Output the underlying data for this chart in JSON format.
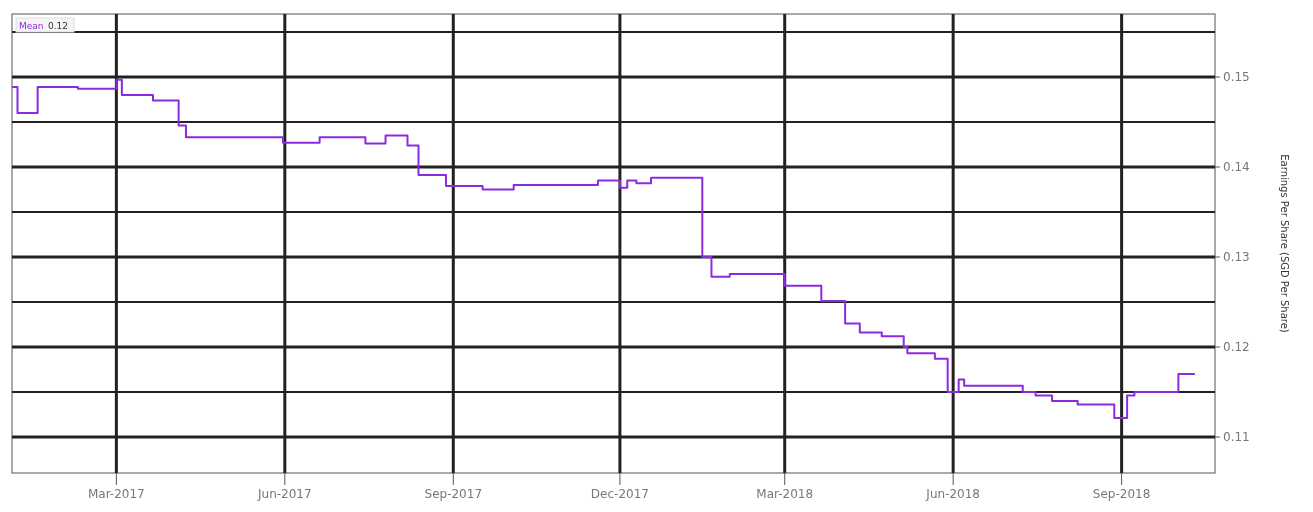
{
  "chart_data": {
    "type": "step",
    "y2label": "Earnings Per Share (SGD Per Share)",
    "legend": "top left",
    "grid": true,
    "annotations": [
      "0.12"
    ],
    "xlim": [
      "2017-01-03",
      "2018-10-22"
    ],
    "xticks": [
      {
        "value": "2017-03-01",
        "label": "Mar-2017"
      },
      {
        "value": "2017-06-01",
        "label": "Jun-2017"
      },
      {
        "value": "2017-09-01",
        "label": "Sep-2017"
      },
      {
        "value": "2017-12-01",
        "label": "Dec-2017"
      },
      {
        "value": "2018-03-01",
        "label": "Mar-2018"
      },
      {
        "value": "2018-06-01",
        "label": "Jun-2018"
      },
      {
        "value": "2018-09-01",
        "label": "Sep-2018"
      }
    ],
    "y2lim": [
      0.106,
      0.157
    ],
    "y2ticks": [
      0.11,
      {
        "value": 0.115,
        "label": null
      },
      0.12,
      {
        "value": 0.125,
        "label": null
      },
      0.13,
      {
        "value": 0.135,
        "label": null
      },
      0.14,
      {
        "value": 0.145,
        "label": null
      },
      0.15,
      {
        "value": 0.155,
        "label": null
      }
    ],
    "series": [
      {
        "name": "Mean",
        "color": "#8a2be2",
        "axis": "y2",
        "x": [
          "2017-01-03",
          "2017-01-06",
          "2017-01-17",
          "2017-02-08",
          "2017-03-01",
          "2017-03-04",
          "2017-03-21",
          "2017-04-04",
          "2017-04-08",
          "2017-05-31",
          "2017-06-20",
          "2017-07-15",
          "2017-07-26",
          "2017-08-07",
          "2017-08-13",
          "2017-08-28",
          "2017-09-17",
          "2017-10-04",
          "2017-11-19",
          "2017-12-01",
          "2017-12-05",
          "2017-12-10",
          "2017-12-18",
          "2018-01-15",
          "2018-01-20",
          "2018-01-30",
          "2018-03-01",
          "2018-03-21",
          "2018-04-03",
          "2018-04-11",
          "2018-04-23",
          "2018-05-05",
          "2018-05-07",
          "2018-05-22",
          "2018-05-29",
          "2018-06-04",
          "2018-06-07",
          "2018-07-09",
          "2018-07-16",
          "2018-07-25",
          "2018-08-08",
          "2018-08-28",
          "2018-09-04",
          "2018-09-08",
          "2018-10-02",
          "2018-10-11"
        ],
        "values": [
          0.1489,
          0.146,
          0.1489,
          0.1487,
          0.1497,
          0.148,
          0.1474,
          0.1446,
          0.1433,
          0.1427,
          0.1433,
          0.1426,
          0.1435,
          0.1424,
          0.1391,
          0.1379,
          0.1375,
          0.138,
          0.1385,
          0.1377,
          0.1385,
          0.1382,
          0.1388,
          0.13,
          0.1278,
          0.1281,
          0.1268,
          0.1251,
          0.1226,
          0.1216,
          0.1212,
          0.12,
          0.1193,
          0.1187,
          0.115,
          0.1164,
          0.1157,
          0.115,
          0.1146,
          0.114,
          0.1136,
          0.1121,
          0.1146,
          0.115,
          0.117,
          0.117
        ]
      }
    ]
  }
}
